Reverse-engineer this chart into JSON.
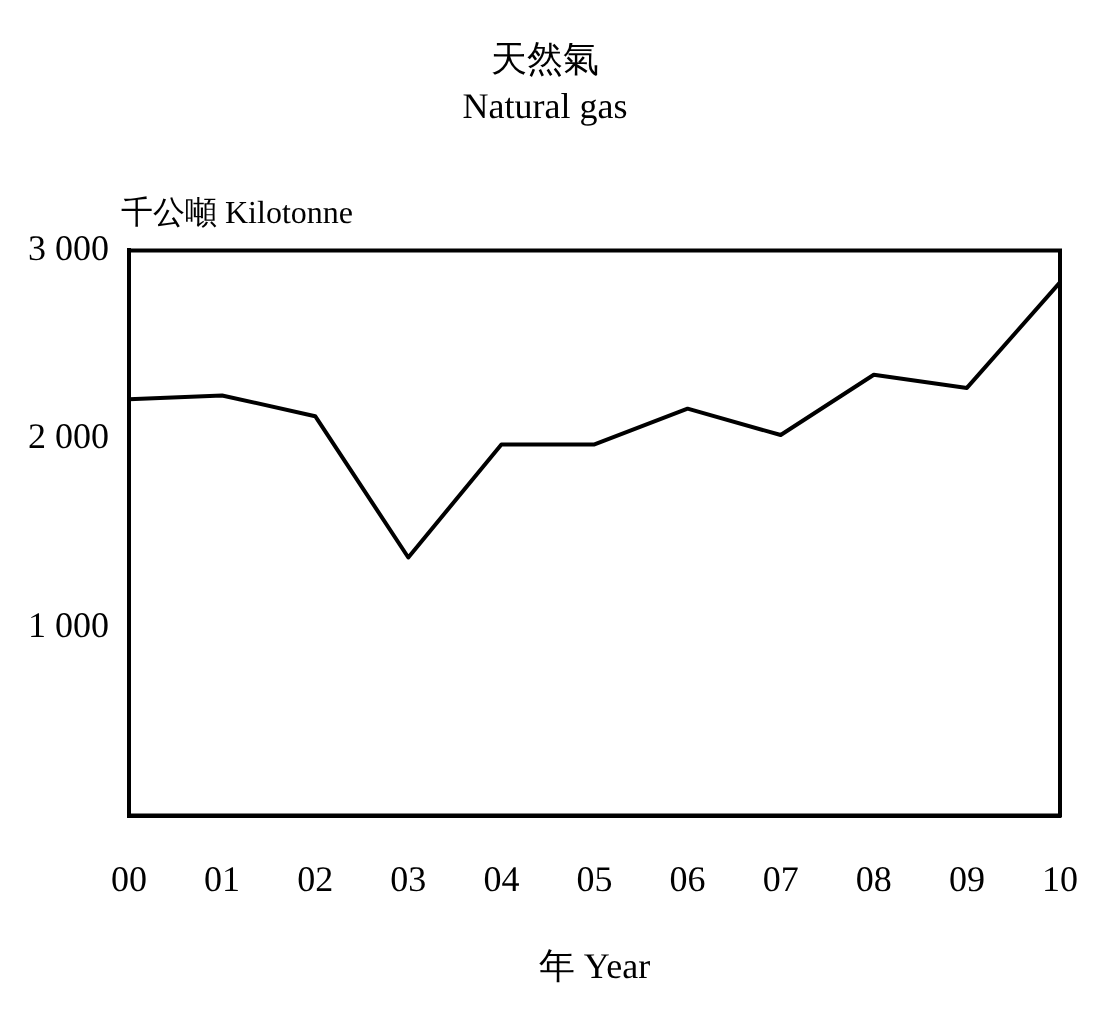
{
  "chart_data": {
    "type": "line",
    "title": "天然氣",
    "subtitle": "Natural gas",
    "ylabel": "千公噸 Kilotonne",
    "xlabel": "年 Year",
    "categories": [
      "00",
      "01",
      "02",
      "03",
      "04",
      "05",
      "06",
      "07",
      "08",
      "09",
      "10"
    ],
    "series": [
      {
        "color": "#000000",
        "values": [
          2210,
          2230,
          2120,
          1370,
          1970,
          1970,
          2160,
          2020,
          2340,
          2270,
          2830
        ]
      }
    ],
    "ylim": [
      0,
      3000
    ],
    "yticks": [
      {
        "value": 1000,
        "label": "1 000"
      },
      {
        "value": 2000,
        "label": "2 000"
      },
      {
        "value": 3000,
        "label": "3 000"
      }
    ],
    "grid": false,
    "legend": false,
    "marker": "none",
    "line_style": "solid"
  }
}
